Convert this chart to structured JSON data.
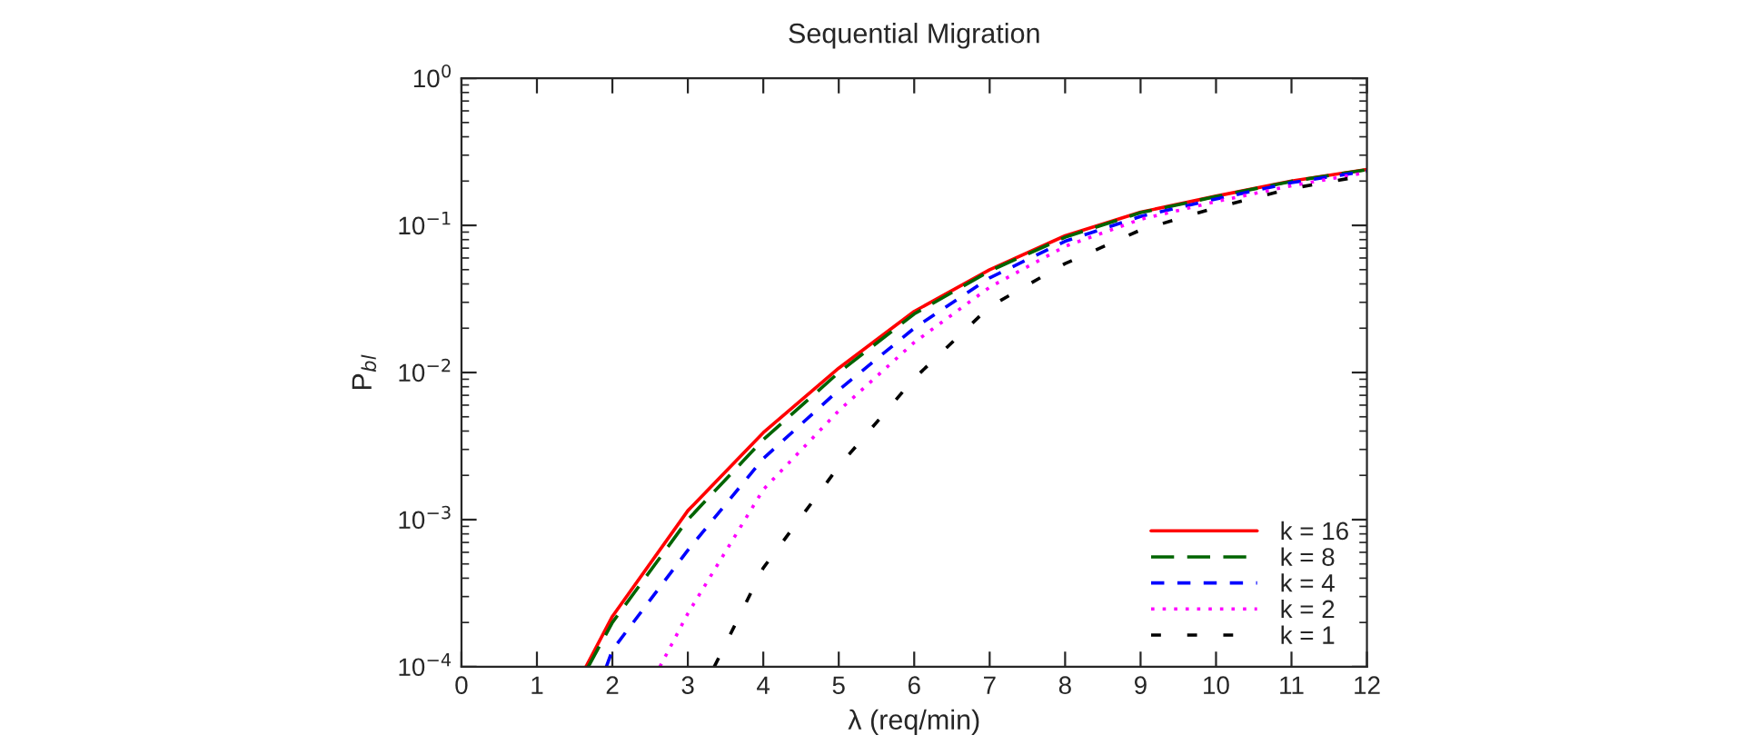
{
  "chart_data": {
    "type": "line",
    "title": "Sequential Migration",
    "xlabel": "λ (req/min)",
    "ylabel": "P$_{bl}$",
    "series": [
      {
        "name": "k = 16",
        "color": "#ff0000",
        "line_style": "solid",
        "x": [
          1.65,
          2,
          3,
          4,
          5,
          6,
          7,
          8,
          9,
          10,
          11,
          12
        ],
        "values": [
          0.0001,
          0.00022,
          0.00115,
          0.0039,
          0.0107,
          0.026,
          0.05,
          0.085,
          0.123,
          0.158,
          0.2,
          0.24
        ]
      },
      {
        "name": "k = 8",
        "color": "#006400",
        "line_style": "dashed",
        "x": [
          1.68,
          2,
          3,
          4,
          5,
          6,
          7,
          8,
          9,
          10,
          11,
          12
        ],
        "values": [
          0.0001,
          0.0002,
          0.001,
          0.0035,
          0.01,
          0.025,
          0.049,
          0.083,
          0.122,
          0.157,
          0.199,
          0.239
        ]
      },
      {
        "name": "k = 4",
        "color": "#0000ff",
        "line_style": "dashed",
        "x": [
          1.92,
          2,
          3,
          4,
          5,
          6,
          7,
          8,
          9,
          10,
          11,
          12
        ],
        "values": [
          0.0001,
          0.00013,
          0.00062,
          0.0026,
          0.0076,
          0.02,
          0.044,
          0.078,
          0.115,
          0.151,
          0.195,
          0.234
        ]
      },
      {
        "name": "k = 2",
        "color": "#ff00ff",
        "line_style": "dotted",
        "x": [
          2.63,
          3,
          4,
          5,
          6,
          7,
          8,
          9,
          10,
          11,
          12
        ],
        "values": [
          0.0001,
          0.00023,
          0.0016,
          0.0055,
          0.016,
          0.038,
          0.072,
          0.11,
          0.145,
          0.186,
          0.229
        ]
      },
      {
        "name": "k = 1",
        "color": "#000000",
        "line_style": "dashed",
        "x": [
          3.35,
          4,
          5,
          6,
          7,
          8,
          9,
          10,
          11,
          12
        ],
        "values": [
          0.0001,
          0.00047,
          0.0023,
          0.0091,
          0.028,
          0.055,
          0.093,
          0.132,
          0.178,
          0.219
        ]
      }
    ],
    "log": "y",
    "xlim": [
      0,
      12
    ],
    "xticks": [
      0,
      1,
      2,
      3,
      4,
      5,
      6,
      7,
      8,
      9,
      10,
      11,
      12
    ],
    "ylim": [
      0.0001,
      1
    ],
    "yticks": [
      {
        "value": 0.0001,
        "label": "10$^{−4}$"
      },
      {
        "value": 0.001,
        "label": "10$^{−3}$"
      },
      {
        "value": 0.01,
        "label": "10$^{−2}$"
      },
      {
        "value": 0.1,
        "label": "10$^{−1}$"
      },
      {
        "value": 1,
        "label": "10$^{0}$"
      }
    ],
    "grid": false,
    "legend": "bottom right"
  }
}
